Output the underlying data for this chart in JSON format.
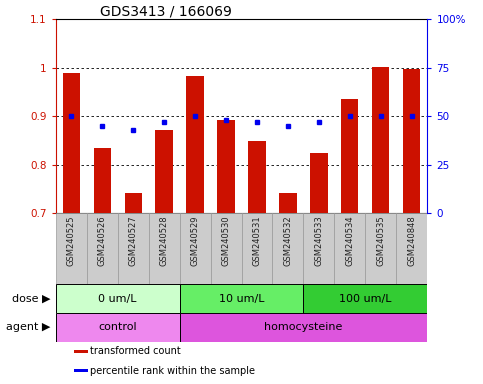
{
  "title": "GDS3413 / 166069",
  "samples": [
    "GSM240525",
    "GSM240526",
    "GSM240527",
    "GSM240528",
    "GSM240529",
    "GSM240530",
    "GSM240531",
    "GSM240532",
    "GSM240533",
    "GSM240534",
    "GSM240535",
    "GSM240848"
  ],
  "red_values": [
    0.99,
    0.835,
    0.742,
    0.872,
    0.983,
    0.893,
    0.848,
    0.742,
    0.825,
    0.935,
    1.002,
    0.998
  ],
  "blue_values": [
    50,
    45,
    43,
    47,
    50,
    48,
    47,
    45,
    47,
    50,
    50,
    50
  ],
  "ylim_left": [
    0.7,
    1.1
  ],
  "ylim_right": [
    0,
    100
  ],
  "yticks_left": [
    0.7,
    0.8,
    0.9,
    1.0,
    1.1
  ],
  "yticks_right": [
    0,
    25,
    50,
    75,
    100
  ],
  "ytick_labels_right": [
    "0",
    "25",
    "50",
    "75",
    "100%"
  ],
  "bar_color": "#CC1100",
  "dot_color": "#0000EE",
  "grid_color": "#000000",
  "dose_groups": [
    {
      "label": "0 um/L",
      "start": 0,
      "end": 4,
      "color": "#CCFFCC"
    },
    {
      "label": "10 um/L",
      "start": 4,
      "end": 8,
      "color": "#66EE66"
    },
    {
      "label": "100 um/L",
      "start": 8,
      "end": 12,
      "color": "#33CC33"
    }
  ],
  "agent_groups": [
    {
      "label": "control",
      "start": 0,
      "end": 4,
      "color": "#EE88EE"
    },
    {
      "label": "homocysteine",
      "start": 4,
      "end": 12,
      "color": "#DD55DD"
    }
  ],
  "dose_label": "dose",
  "agent_label": "agent",
  "legend_red": "transformed count",
  "legend_blue": "percentile rank within the sample",
  "bar_width": 0.55,
  "title_fontsize": 10,
  "tick_fontsize": 7.5,
  "dose_fontsize": 8,
  "agent_fontsize": 8,
  "legend_fontsize": 7,
  "sample_label_fontsize": 6,
  "sample_label_color": "#222222",
  "sample_bg_color": "#CCCCCC",
  "sample_border_color": "#999999"
}
